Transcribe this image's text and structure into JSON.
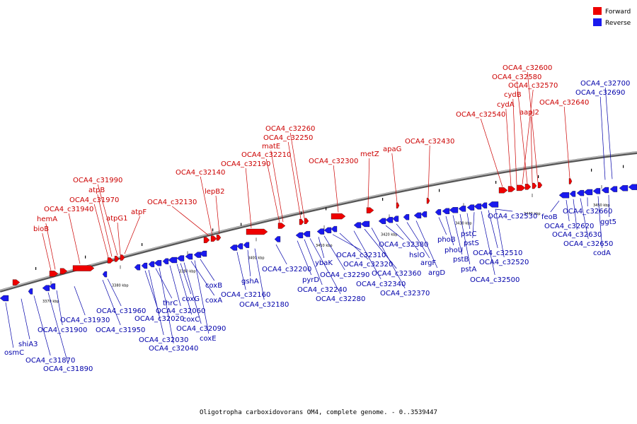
{
  "caption": "Oligotropha carboxidovorans OM4, complete genome. - 0..3539447",
  "legend": [
    {
      "label": "Forward",
      "color": "#ee0000"
    },
    {
      "label": "Reverse",
      "color": "#1a1aee"
    }
  ],
  "colors": {
    "forward": "#ee0000",
    "reverse": "#1a1aee",
    "forward_label": "#cc0000",
    "reverse_label": "#0000aa",
    "backbone": "#8a8a8a"
  },
  "ticks": [
    "3370 kbp",
    "3380 kbp",
    "3390 kbp",
    "3400 kbp",
    "3410 kbp",
    "3420 kbp",
    "3430 kbp",
    "3440 kbp",
    "3450 kbp"
  ],
  "forward_labels": [
    "bioB",
    "hemA",
    "OCA4_c31940",
    "OCA4_c31970",
    "atpB",
    "OCA4_c31990",
    "atpG1",
    "atpF",
    "OCA4_c32130",
    "OCA4_c32140",
    "lepB2",
    "OCA4_c32190",
    "OCA4_c32210",
    "matE",
    "OCA4_c32250",
    "OCA4_c32260",
    "OCA4_c32300",
    "metZ",
    "apaG",
    "OCA4_c32430",
    "OCA4_c32540",
    "cydA",
    "cydB",
    "OCA4_c32570",
    "OCA4_c32580",
    "OCA4_c32600",
    "aapJ2",
    "OCA4_c32640"
  ],
  "reverse_labels": [
    "osmC",
    "shiA3",
    "OCA4_c31870",
    "OCA4_c31890",
    "OCA4_c31900",
    "OCA4_c31930",
    "OCA4_c31950",
    "OCA4_c31960",
    "OCA4_c32020",
    "thrC",
    "OCA4_c32030",
    "OCA4_c32040",
    "coxG",
    "OCA4_c32060",
    "coxC",
    "coxA",
    "OCA4_c32090",
    "coxE",
    "coxB",
    "OCA4_c32160",
    "gshA",
    "OCA4_c32180",
    "OCA4_c32200",
    "pyrD",
    "OCA4_c32240",
    "OCA4_c32280",
    "ybaK",
    "OCA4_c32290",
    "OCA4_c32310",
    "OCA4_c32320",
    "OCA4_c32340",
    "OCA4_c32360",
    "OCA4_c32370",
    "OCA4_c32380",
    "hslO",
    "argF",
    "argD",
    "phoB",
    "phoU",
    "pstB",
    "pstA",
    "pstC",
    "pstS",
    "OCA4_c32500",
    "OCA4_c32510",
    "OCA4_c32520",
    "OCA4_c32530",
    "feoB",
    "OCA4_c32620",
    "OCA4_c32630",
    "OCA4_c32650",
    "OCA4_c32660",
    "codA",
    "ggt5",
    "OCA4_c32690",
    "OCA4_c32700"
  ]
}
